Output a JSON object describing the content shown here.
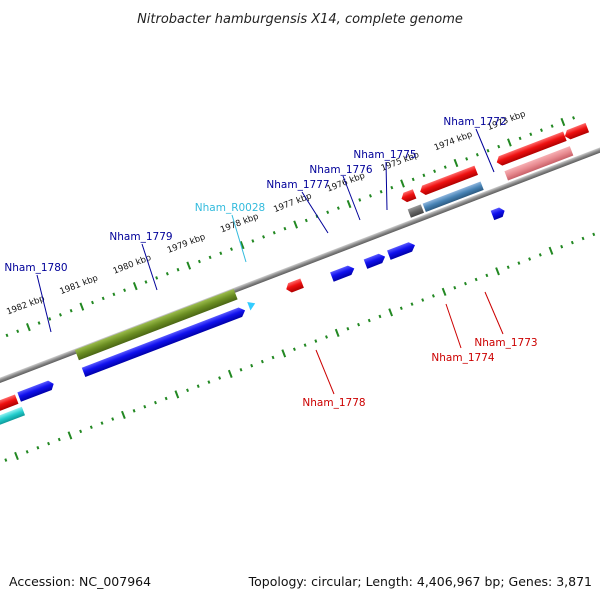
{
  "title": "Nitrobacter hamburgensis X14, complete genome",
  "footer": {
    "accession": "Accession: NC_007964",
    "summary": "Topology: circular; Length: 4,406,967 bp; Genes: 3,871"
  },
  "colors": {
    "forward_gene": "#0000ee",
    "reverse_gene": "#ee0000",
    "rna_gene": "#33ccff",
    "backbone": "#888888",
    "tick": "#228822",
    "forward_label": "#000099",
    "reverse_label": "#cc0000",
    "rna_label": "#33bbdd"
  },
  "scale_labels": [
    "1982 kbp",
    "1981 kbp",
    "1980 kbp",
    "1979 kbp",
    "1978 kbp",
    "1977 kbp",
    "1976 kbp",
    "1975 kbp",
    "1974 kbp",
    "1973 kbp"
  ],
  "gene_labels": {
    "nham_1780": "Nham_1780",
    "nham_1779": "Nham_1779",
    "nham_r0028": "Nham_R0028",
    "nham_1777": "Nham_1777",
    "nham_1776": "Nham_1776",
    "nham_1775": "Nham_1775",
    "nham_1772": "Nham_1772",
    "nham_1778": "Nham_1778",
    "nham_1774": "Nham_1774",
    "nham_1773": "Nham_1773"
  }
}
